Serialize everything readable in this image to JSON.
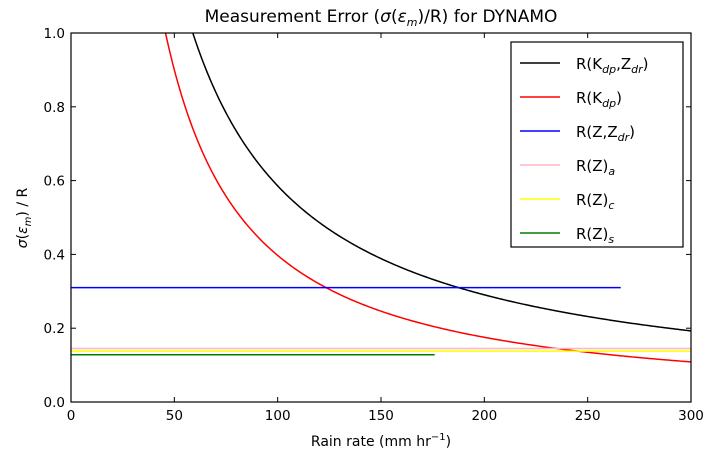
{
  "chart_data": {
    "type": "line",
    "title": {
      "prefix": "Measurement Error (",
      "sigma": "σ",
      "paren_open": "(",
      "eps": "ε",
      "eps_sub": "m",
      "suffix": ")/R) for DYNAMO"
    },
    "xlabel": {
      "main": "Rain rate (mm hr",
      "sup": "−1",
      "close": ")"
    },
    "ylabel": {
      "sigma": "σ",
      "paren_open": "(",
      "eps": "ε",
      "eps_sub": "m",
      "paren_close": ")",
      "rest": " / R"
    },
    "xlim": [
      0,
      300
    ],
    "ylim": [
      0.0,
      1.0
    ],
    "x_ticks": [
      "0",
      "50",
      "100",
      "150",
      "200",
      "250",
      "300"
    ],
    "y_ticks": [
      "0.0",
      "0.2",
      "0.4",
      "0.6",
      "0.8",
      "1.0"
    ],
    "grid": false,
    "legend_position": "top-right",
    "series": [
      {
        "name": "R(K",
        "sub": "dp",
        "name2": ",Z",
        "sub2": "dr",
        "name3": ")",
        "color": "#000000",
        "kind": "curve",
        "k": 61.9,
        "p": 1.012,
        "xmin": 55,
        "xmax": 300
      },
      {
        "name": "R(K",
        "sub": "dp",
        "name2": ")",
        "sub2": "",
        "name3": "",
        "color": "#ff0000",
        "kind": "curve",
        "k": 91.0,
        "p": 1.18,
        "xmin": 35,
        "xmax": 300
      },
      {
        "name": "R(Z,Z",
        "sub": "dr",
        "name2": ")",
        "sub2": "",
        "name3": "",
        "color": "#0000ff",
        "kind": "flat",
        "y": 0.31,
        "xmin": 0,
        "xmax": 266
      },
      {
        "name": "R(Z)",
        "sub": "a",
        "name2": "",
        "sub2": "",
        "name3": "",
        "color": "#ffb6c1",
        "kind": "flat",
        "y": 0.145,
        "xmin": 0,
        "xmax": 300
      },
      {
        "name": "R(Z)",
        "sub": "c",
        "name2": "",
        "sub2": "",
        "name3": "",
        "color": "#ffff00",
        "kind": "flat",
        "y": 0.138,
        "xmin": 0,
        "xmax": 300
      },
      {
        "name": "R(Z)",
        "sub": "s",
        "name2": "",
        "sub2": "",
        "name3": "",
        "color": "#008000",
        "kind": "flat",
        "y": 0.128,
        "xmin": 0,
        "xmax": 176
      }
    ]
  }
}
